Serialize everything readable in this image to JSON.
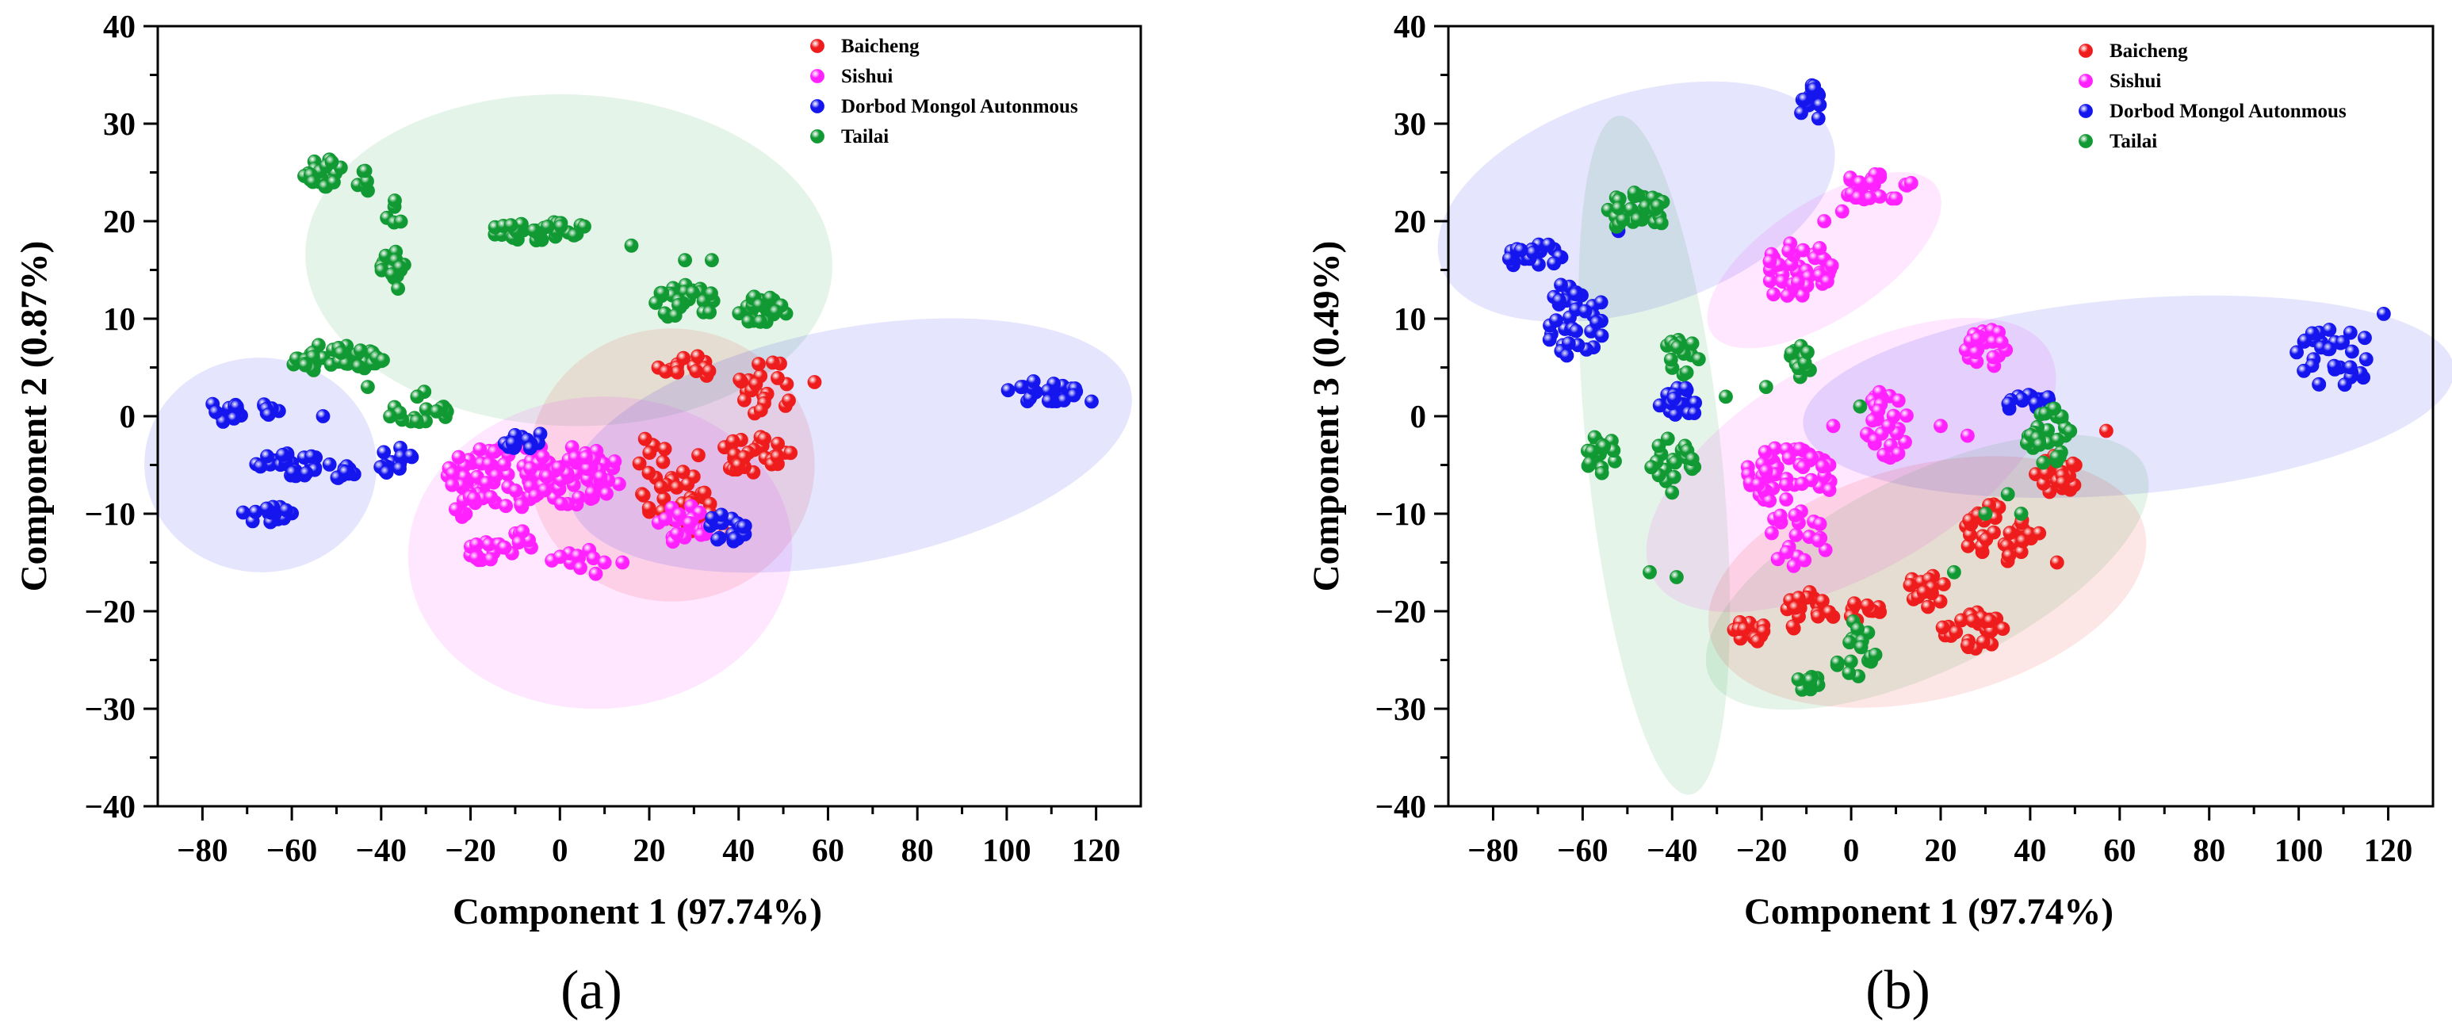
{
  "figure": {
    "panel_labels": [
      "(a)",
      "(b)"
    ],
    "colors": {
      "Baicheng": "#ee1c1c",
      "Sishui": "#ff22ff",
      "Dorbod Mongol Autonmous": "#1515ee",
      "Tailai": "#119933"
    }
  },
  "chart_data": [
    {
      "type": "scatter",
      "panel": "(a)",
      "xlabel": "Component 1 (97.74%)",
      "ylabel": "Component 2 (0.87%)",
      "xlim": [
        -90,
        130
      ],
      "ylim": [
        -40,
        40
      ],
      "xticks": [
        -80,
        -60,
        -40,
        -20,
        0,
        20,
        40,
        60,
        80,
        100,
        120
      ],
      "yticks": [
        -40,
        -30,
        -20,
        -10,
        0,
        10,
        20,
        30,
        40
      ],
      "legend": [
        "Baicheng",
        "Sishui",
        "Dorbod Mongol Autonmous",
        "Tailai"
      ],
      "legend_position": "top-right",
      "grid": false,
      "ellipses": [
        {
          "series": "Tailai",
          "cx": 2,
          "cy": 16,
          "rx": 59,
          "ry": 17,
          "angle": -2
        },
        {
          "series": "Baicheng",
          "cx": 25,
          "cy": -5,
          "rx": 32,
          "ry": 14,
          "angle": 0
        },
        {
          "series": "Sishui",
          "cx": 9,
          "cy": -14,
          "rx": 43,
          "ry": 16,
          "angle": 3
        },
        {
          "series": "Dorbod Mongol Autonmous",
          "cx": -67,
          "cy": -5,
          "rx": 26,
          "ry": 11,
          "angle": -3
        },
        {
          "series": "Dorbod Mongol Autonmous",
          "cx": 65,
          "cy": -3,
          "rx": 64,
          "ry": 12,
          "angle": 11
        }
      ],
      "series": [
        {
          "name": "Baicheng",
          "clusters": [
            {
              "x": 28,
              "y": 5,
              "dx": 6,
              "dy": 1.5,
              "n": 14
            },
            {
              "x": 46,
              "y": 3,
              "dx": 6,
              "dy": 3,
              "n": 22
            },
            {
              "x": 44,
              "y": -4,
              "dx": 8,
              "dy": 2,
              "n": 30
            },
            {
              "x": 25,
              "y": -8,
              "dx": 8,
              "dy": 3,
              "n": 22
            },
            {
              "x": 21,
              "y": -4,
              "dx": 4,
              "dy": 2,
              "n": 8
            },
            {
              "x": 31,
              "y": -10,
              "dx": 4,
              "dy": 2,
              "n": 10
            }
          ],
          "points": [
            [
              57,
              3.5
            ],
            [
              31,
              -4
            ],
            [
              37,
              -12
            ]
          ]
        },
        {
          "name": "Sishui",
          "clusters": [
            {
              "x": -6,
              "y": -6,
              "dx": 20,
              "dy": 3.5,
              "n": 130
            },
            {
              "x": -14,
              "y": -13,
              "dx": 10,
              "dy": 2,
              "n": 22
            },
            {
              "x": 28,
              "y": -11,
              "dx": 8,
              "dy": 2,
              "n": 22
            },
            {
              "x": -22,
              "y": -9,
              "dx": 4,
              "dy": 3,
              "n": 12
            },
            {
              "x": 4,
              "y": -15,
              "dx": 7,
              "dy": 1.5,
              "n": 10
            }
          ],
          "points": [
            [
              10,
              -15
            ],
            [
              14,
              -15
            ]
          ]
        },
        {
          "name": "Dorbod Mongol Autonmous",
          "clusters": [
            {
              "x": -75,
              "y": 0.5,
              "dx": 4,
              "dy": 1.2,
              "n": 12
            },
            {
              "x": -65,
              "y": 0.5,
              "dx": 3,
              "dy": 1,
              "n": 8
            },
            {
              "x": -60,
              "y": -5,
              "dx": 9,
              "dy": 1.2,
              "n": 26
            },
            {
              "x": -48,
              "y": -6,
              "dx": 4,
              "dy": 1,
              "n": 10
            },
            {
              "x": -65,
              "y": -10,
              "dx": 6,
              "dy": 1,
              "n": 16
            },
            {
              "x": -37,
              "y": -4.5,
              "dx": 4,
              "dy": 1.5,
              "n": 14
            },
            {
              "x": -8,
              "y": -2.5,
              "dx": 5,
              "dy": 1,
              "n": 14
            },
            {
              "x": 37,
              "y": -11.5,
              "dx": 5,
              "dy": 1.5,
              "n": 18
            },
            {
              "x": 107,
              "y": 2.5,
              "dx": 9,
              "dy": 1.2,
              "n": 26
            }
          ],
          "points": [
            [
              -53,
              0
            ],
            [
              119,
              1.5
            ]
          ]
        },
        {
          "name": "Tailai",
          "clusters": [
            {
              "x": -53,
              "y": 25,
              "dx": 5,
              "dy": 1.5,
              "n": 28
            },
            {
              "x": -44,
              "y": 24,
              "dx": 2,
              "dy": 1.5,
              "n": 6
            },
            {
              "x": -37,
              "y": 21,
              "dx": 2,
              "dy": 1.5,
              "n": 5
            },
            {
              "x": -37,
              "y": 15,
              "dx": 3,
              "dy": 2,
              "n": 18
            },
            {
              "x": -5,
              "y": 19,
              "dx": 12,
              "dy": 1,
              "n": 34
            },
            {
              "x": 28,
              "y": 11.5,
              "dx": 7,
              "dy": 2,
              "n": 30
            },
            {
              "x": 45,
              "y": 11,
              "dx": 6,
              "dy": 1.5,
              "n": 22
            },
            {
              "x": -50,
              "y": 6,
              "dx": 11,
              "dy": 1.5,
              "n": 40
            },
            {
              "x": -32,
              "y": 1,
              "dx": 8,
              "dy": 2,
              "n": 18
            }
          ],
          "points": [
            [
              16,
              17.5
            ],
            [
              28,
              16
            ],
            [
              34,
              16
            ],
            [
              -43,
              3
            ]
          ]
        }
      ]
    },
    {
      "type": "scatter",
      "panel": "(b)",
      "xlabel": "Component 1 (97.74%)",
      "ylabel": "Component 3 (0.49%)",
      "xlim": [
        -90,
        130
      ],
      "ylim": [
        -40,
        40
      ],
      "xticks": [
        -80,
        -60,
        -40,
        -20,
        0,
        20,
        40,
        60,
        80,
        100,
        120
      ],
      "yticks": [
        -40,
        -30,
        -20,
        -10,
        0,
        10,
        20,
        30,
        40
      ],
      "legend": [
        "Baicheng",
        "Sishui",
        "Dorbod Mongol Autonmous",
        "Tailai"
      ],
      "legend_position": "top-right",
      "grid": false,
      "ellipses": [
        {
          "series": "Dorbod Mongol Autonmous",
          "cx": -48,
          "cy": 22,
          "rx": 46,
          "ry": 11,
          "angle": 18
        },
        {
          "series": "Tailai",
          "cx": -44,
          "cy": -4,
          "rx": 15,
          "ry": 35,
          "angle": 6
        },
        {
          "series": "Sishui",
          "cx": -6,
          "cy": 16,
          "rx": 30,
          "ry": 6,
          "angle": 33
        },
        {
          "series": "Sishui",
          "cx": 0,
          "cy": -5,
          "rx": 51,
          "ry": 11,
          "angle": 30
        },
        {
          "series": "Dorbod Mongol Autonmous",
          "cx": 62,
          "cy": 2,
          "rx": 73,
          "ry": 10,
          "angle": 5
        },
        {
          "series": "Tailai",
          "cx": 17,
          "cy": -16,
          "rx": 54,
          "ry": 10,
          "angle": 26
        },
        {
          "series": "Baicheng",
          "cx": 17,
          "cy": -17,
          "rx": 50,
          "ry": 12,
          "angle": 14
        }
      ],
      "series": [
        {
          "name": "Baicheng",
          "clusters": [
            {
              "x": 46,
              "y": -6,
              "dx": 5,
              "dy": 2,
              "n": 30
            },
            {
              "x": 33,
              "y": -12,
              "dx": 8,
              "dy": 3,
              "n": 36
            },
            {
              "x": 17,
              "y": -18,
              "dx": 5,
              "dy": 2,
              "n": 16
            },
            {
              "x": -22,
              "y": -22,
              "dx": 5,
              "dy": 1.2,
              "n": 16
            },
            {
              "x": -10,
              "y": -20,
              "dx": 7,
              "dy": 2,
              "n": 20
            },
            {
              "x": 3,
              "y": -20,
              "dx": 5,
              "dy": 1.5,
              "n": 12
            },
            {
              "x": 27,
              "y": -22,
              "dx": 8,
              "dy": 2,
              "n": 28
            }
          ],
          "points": [
            [
              57,
              -1.5
            ],
            [
              46,
              -15
            ],
            [
              42,
              -12
            ]
          ]
        },
        {
          "name": "Sishui",
          "clusters": [
            {
              "x": 6,
              "y": 23.5,
              "dx": 8,
              "dy": 1.5,
              "n": 22
            },
            {
              "x": -13,
              "y": 15,
              "dx": 9,
              "dy": 3,
              "n": 40
            },
            {
              "x": 30,
              "y": 7,
              "dx": 5,
              "dy": 2,
              "n": 24
            },
            {
              "x": 8,
              "y": -1,
              "dx": 5,
              "dy": 4,
              "n": 34
            },
            {
              "x": -14,
              "y": -6,
              "dx": 11,
              "dy": 3,
              "n": 50
            },
            {
              "x": -12,
              "y": -12.5,
              "dx": 7,
              "dy": 3,
              "n": 20
            }
          ],
          "points": [
            [
              -6,
              20
            ],
            [
              -2,
              21
            ],
            [
              -4,
              -1
            ],
            [
              20,
              -1
            ],
            [
              26,
              -2
            ]
          ]
        },
        {
          "name": "Dorbod Mongol Autonmous",
          "clusters": [
            {
              "x": -9,
              "y": 32,
              "dx": 2.5,
              "dy": 2,
              "n": 16
            },
            {
              "x": -71,
              "y": 16.5,
              "dx": 8,
              "dy": 1.2,
              "n": 20
            },
            {
              "x": -62,
              "y": 10,
              "dx": 7,
              "dy": 4,
              "n": 36
            },
            {
              "x": -38,
              "y": 1.5,
              "dx": 5,
              "dy": 1.5,
              "n": 18
            },
            {
              "x": 40,
              "y": 1.5,
              "dx": 7,
              "dy": 1.2,
              "n": 16
            },
            {
              "x": 108,
              "y": 6,
              "dx": 10,
              "dy": 3,
              "n": 32
            }
          ],
          "points": [
            [
              119,
              10.5
            ],
            [
              -52,
              19
            ]
          ]
        },
        {
          "name": "Tailai",
          "clusters": [
            {
              "x": -48,
              "y": 21,
              "dx": 7,
              "dy": 2,
              "n": 30
            },
            {
              "x": -38,
              "y": 6,
              "dx": 4,
              "dy": 2,
              "n": 16
            },
            {
              "x": -11,
              "y": 5.5,
              "dx": 4,
              "dy": 2,
              "n": 12
            },
            {
              "x": -56,
              "y": -4,
              "dx": 4,
              "dy": 2,
              "n": 18
            },
            {
              "x": -40,
              "y": -5,
              "dx": 5,
              "dy": 3,
              "n": 20
            },
            {
              "x": 44,
              "y": -2,
              "dx": 5,
              "dy": 3,
              "n": 30
            },
            {
              "x": 0,
              "y": -24,
              "dx": 6,
              "dy": 3,
              "n": 18
            },
            {
              "x": -11,
              "y": -27,
              "dx": 4,
              "dy": 1.5,
              "n": 10
            }
          ],
          "points": [
            [
              -45,
              -16
            ],
            [
              -39,
              -16.5
            ],
            [
              -28,
              2
            ],
            [
              -19,
              3
            ],
            [
              35,
              -8
            ],
            [
              23,
              -16
            ],
            [
              30,
              -10
            ],
            [
              38,
              -10
            ],
            [
              2,
              1
            ]
          ]
        }
      ]
    }
  ]
}
